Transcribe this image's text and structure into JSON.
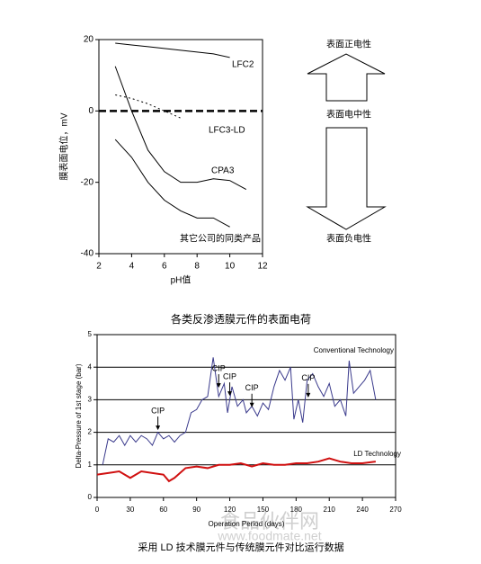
{
  "chart_data": [
    {
      "type": "line",
      "ylabel": "膜表面电位，mV",
      "xlabel": "pH值",
      "xlim": [
        2,
        12
      ],
      "xticks": [
        2,
        4,
        6,
        8,
        10,
        12
      ],
      "ylim": [
        -40,
        20
      ],
      "yticks": [
        -40,
        -20,
        0,
        20
      ],
      "reference_line": {
        "value": 0,
        "color": "#000000"
      },
      "series": [
        {
          "name": "LFC2",
          "color": "#000000",
          "x": [
            3,
            4,
            5,
            6,
            7,
            8,
            9,
            10
          ],
          "values": [
            19,
            18.5,
            18,
            17.5,
            17,
            16.5,
            16,
            15
          ]
        },
        {
          "name": "LFC3-LD",
          "color": "#000000",
          "dashed": true,
          "x": [
            3,
            4,
            5,
            6,
            7
          ],
          "values": [
            4.5,
            3.5,
            2,
            0,
            -2
          ]
        },
        {
          "name": "CPA3",
          "color": "#000000",
          "x": [
            3,
            4,
            5,
            6,
            7,
            8,
            9,
            10,
            11
          ],
          "values": [
            12.5,
            0,
            -11,
            -17,
            -20,
            -20,
            -19,
            -19.5,
            -22
          ]
        },
        {
          "name": "其它公司的同类产品",
          "color": "#000000",
          "x": [
            3,
            4,
            5,
            6,
            7,
            8,
            9,
            10
          ],
          "values": [
            -8,
            -13,
            -20,
            -25,
            -28,
            -30,
            -30,
            -32.5
          ]
        }
      ]
    },
    {
      "type": "line",
      "title": "各类反渗透膜元件的表面电荷",
      "ylabel": "Delta-Pressure of 1st stage (bar)",
      "xlabel": "Operation Period (days)",
      "xlim": [
        0,
        270
      ],
      "xticks": [
        0,
        30,
        60,
        90,
        120,
        150,
        180,
        210,
        240,
        270
      ],
      "ylim": [
        0,
        5
      ],
      "yticks": [
        0,
        1,
        2,
        3,
        4,
        5
      ],
      "grid": true,
      "series": [
        {
          "name": "Conventional Technology",
          "color": "#3a3a8c",
          "x": [
            5,
            10,
            15,
            20,
            25,
            30,
            35,
            40,
            45,
            50,
            55,
            60,
            65,
            70,
            75,
            80,
            85,
            90,
            95,
            100,
            105,
            110,
            115,
            118,
            122,
            127,
            132,
            135,
            140,
            145,
            150,
            155,
            160,
            165,
            170,
            175,
            178,
            182,
            186,
            190,
            195,
            200,
            205,
            210,
            215,
            220,
            225,
            228,
            232,
            237,
            242,
            247,
            252
          ],
          "values": [
            1.0,
            1.8,
            1.7,
            1.9,
            1.6,
            1.9,
            1.7,
            1.9,
            1.8,
            1.6,
            2.0,
            1.8,
            1.9,
            1.7,
            1.9,
            2.0,
            2.6,
            2.7,
            3.0,
            3.1,
            4.3,
            3.1,
            3.5,
            2.6,
            3.4,
            2.8,
            3.0,
            2.6,
            2.8,
            2.5,
            2.9,
            2.7,
            3.4,
            3.9,
            3.6,
            4.0,
            2.4,
            3.0,
            2.3,
            3.6,
            3.8,
            3.4,
            3.1,
            3.5,
            2.8,
            3.0,
            2.5,
            4.2,
            3.2,
            3.4,
            3.6,
            3.9,
            3.0
          ]
        },
        {
          "name": "LD Technology",
          "color": "#d01010",
          "x": [
            0,
            10,
            20,
            30,
            40,
            50,
            60,
            65,
            70,
            80,
            90,
            100,
            110,
            120,
            130,
            140,
            150,
            160,
            170,
            180,
            190,
            200,
            210,
            220,
            230,
            240,
            252
          ],
          "values": [
            0.7,
            0.75,
            0.8,
            0.6,
            0.8,
            0.75,
            0.7,
            0.5,
            0.6,
            0.9,
            0.95,
            0.9,
            1.0,
            1.0,
            1.05,
            0.95,
            1.05,
            1.0,
            1.0,
            1.05,
            1.05,
            1.1,
            1.2,
            1.1,
            1.05,
            1.05,
            1.1
          ]
        }
      ],
      "annotations": [
        {
          "text": "CIP",
          "x": 55,
          "y": 2.65
        },
        {
          "text": "CIP",
          "x": 110,
          "y": 3.95
        },
        {
          "text": "CIP",
          "x": 120,
          "y": 3.7
        },
        {
          "text": "CIP",
          "x": 140,
          "y": 3.35
        },
        {
          "text": "CIP",
          "x": 191,
          "y": 3.65
        }
      ],
      "caption": "采用 LD 技术膜元件与传统膜元件对比运行数据"
    }
  ],
  "diagram": {
    "labels": [
      "表面正电性",
      "表面电中性",
      "表面负电性"
    ]
  },
  "watermark": {
    "name": "食品伙伴网",
    "url": "www.foodmate.net"
  }
}
